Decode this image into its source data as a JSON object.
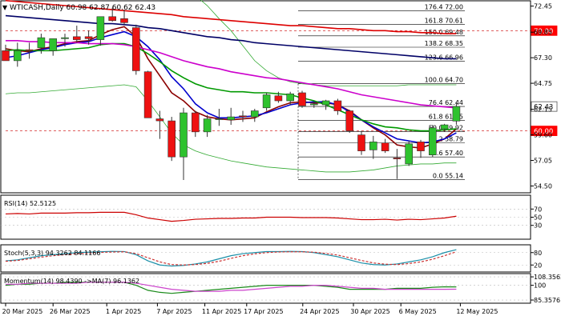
{
  "instrument": {
    "name": "WTICASH",
    "timeframe": "Daily",
    "ohlc": "60.98 62.87 60.62 62.43"
  },
  "chart_data": [
    {
      "type": "candlestick",
      "title": "WTICASH,Daily  60.98 62.87 60.62 62.43",
      "x_labels": [
        "20 Mar 2025",
        "26 Mar 2025",
        "1 Apr 2025",
        "7 Apr 2025",
        "11 Apr 2025",
        "17 Apr 2025",
        "24 Apr 2025",
        "30 Apr 2025",
        "6 May 2025",
        "12 May 2025"
      ],
      "y_ticks": [
        54.5,
        57.05,
        59.6,
        62.15,
        64.75,
        67.3,
        69.85,
        72.45
      ],
      "y_tick_labels": [
        "54.50",
        "57.05",
        "59.60",
        "62.15",
        "64.75",
        "67.30",
        "69.85",
        "72.45"
      ],
      "ylim": [
        53.9,
        72.9
      ],
      "candles": [
        {
          "o": 68.0,
          "h": 68.6,
          "l": 67.0,
          "c": 67.0
        },
        {
          "o": 67.0,
          "h": 68.8,
          "l": 66.4,
          "c": 68.0
        },
        {
          "o": 68.1,
          "h": 68.8,
          "l": 67.2,
          "c": 68.0
        },
        {
          "o": 68.3,
          "h": 69.7,
          "l": 67.7,
          "c": 69.3
        },
        {
          "o": 68.0,
          "h": 69.2,
          "l": 67.5,
          "c": 69.2
        },
        {
          "o": 69.2,
          "h": 69.7,
          "l": 68.4,
          "c": 69.3
        },
        {
          "o": 69.4,
          "h": 70.5,
          "l": 68.8,
          "c": 69.1
        },
        {
          "o": 69.4,
          "h": 70.0,
          "l": 68.6,
          "c": 69.2
        },
        {
          "o": 69.1,
          "h": 71.4,
          "l": 68.5,
          "c": 71.4
        },
        {
          "o": 71.4,
          "h": 72.3,
          "l": 70.9,
          "c": 71.0
        },
        {
          "o": 71.2,
          "h": 72.1,
          "l": 70.6,
          "c": 70.8
        },
        {
          "o": 70.3,
          "h": 70.6,
          "l": 65.6,
          "c": 66.0
        },
        {
          "o": 65.9,
          "h": 66.0,
          "l": 61.3,
          "c": 61.3
        },
        {
          "o": 61.2,
          "h": 62.0,
          "l": 59.2,
          "c": 61.0
        },
        {
          "o": 61.0,
          "h": 61.4,
          "l": 57.0,
          "c": 57.4
        },
        {
          "o": 57.4,
          "h": 62.3,
          "l": 55.1,
          "c": 61.8
        },
        {
          "o": 61.8,
          "h": 62.0,
          "l": 59.4,
          "c": 59.9
        },
        {
          "o": 59.9,
          "h": 61.6,
          "l": 59.4,
          "c": 61.2
        },
        {
          "o": 61.2,
          "h": 62.2,
          "l": 60.5,
          "c": 61.2
        },
        {
          "o": 61.1,
          "h": 62.3,
          "l": 60.6,
          "c": 61.4
        },
        {
          "o": 61.5,
          "h": 62.0,
          "l": 60.9,
          "c": 61.4
        },
        {
          "o": 61.4,
          "h": 62.2,
          "l": 60.9,
          "c": 62.0
        },
        {
          "o": 62.3,
          "h": 63.8,
          "l": 62.0,
          "c": 63.6
        },
        {
          "o": 63.5,
          "h": 63.9,
          "l": 62.8,
          "c": 63.0
        },
        {
          "o": 63.0,
          "h": 63.9,
          "l": 62.6,
          "c": 63.7
        },
        {
          "o": 63.8,
          "h": 64.0,
          "l": 62.3,
          "c": 62.5
        },
        {
          "o": 62.6,
          "h": 62.9,
          "l": 62.3,
          "c": 62.7
        },
        {
          "o": 62.6,
          "h": 63.1,
          "l": 62.1,
          "c": 63.0
        },
        {
          "o": 63.0,
          "h": 63.2,
          "l": 61.6,
          "c": 62.0
        },
        {
          "o": 62.0,
          "h": 62.1,
          "l": 59.8,
          "c": 60.0
        },
        {
          "o": 59.6,
          "h": 60.0,
          "l": 57.6,
          "c": 58.0
        },
        {
          "o": 58.1,
          "h": 59.5,
          "l": 57.2,
          "c": 58.9
        },
        {
          "o": 58.8,
          "h": 59.2,
          "l": 57.8,
          "c": 58.0
        },
        {
          "o": 57.3,
          "h": 58.2,
          "l": 55.2,
          "c": 57.2
        },
        {
          "o": 56.7,
          "h": 59.0,
          "l": 56.5,
          "c": 58.7
        },
        {
          "o": 58.9,
          "h": 59.1,
          "l": 57.3,
          "c": 58.0
        },
        {
          "o": 57.6,
          "h": 60.6,
          "l": 57.4,
          "c": 60.3
        },
        {
          "o": 60.2,
          "h": 60.7,
          "l": 59.9,
          "c": 60.6
        },
        {
          "o": 60.98,
          "h": 62.87,
          "l": 60.62,
          "c": 62.43
        }
      ],
      "fibonacci": [
        {
          "level": "176.4",
          "value": 72.0,
          "label": "176.4 72.00"
        },
        {
          "level": "161.8",
          "value": 70.61,
          "label": "161.8 70.61"
        },
        {
          "level": "150.0",
          "value": 69.48,
          "label": "150.0 69.48"
        },
        {
          "level": "138.2",
          "value": 68.35,
          "label": "138.2 68.35"
        },
        {
          "level": "123.6",
          "value": 66.96,
          "label": "123.6 66.96"
        },
        {
          "level": "100.0",
          "value": 64.7,
          "label": "100.0 64.70"
        },
        {
          "level": "76.4",
          "value": 62.44,
          "label": "76.4 62.44"
        },
        {
          "level": "61.8",
          "value": 61.05,
          "label": "61.8 61.05"
        },
        {
          "level": "50.0",
          "value": 59.92,
          "label": "50.0 59.92"
        },
        {
          "level": "38.2",
          "value": 58.79,
          "label": "38.2 58.79"
        },
        {
          "level": "23.6",
          "value": 57.4,
          "label": "23.6 57.40"
        },
        {
          "level": "0.0",
          "value": 55.14,
          "label": "0.0 55.14"
        }
      ],
      "price_markers": [
        {
          "value": 62.43,
          "label": "62.43",
          "color": "#ffffff",
          "border": "#555555",
          "text_color": "#000000"
        },
        {
          "value": 70.0,
          "label": "70.00",
          "color": "#ff0000",
          "border": "#ff0000",
          "text_color": "#ffffff"
        },
        {
          "value": 60.0,
          "label": "60.00",
          "color": "#ff0000",
          "border": "#ff0000",
          "text_color": "#ffffff"
        }
      ],
      "moving_averages": [
        {
          "color": "#8b0000",
          "values": [
            68.2,
            68.0,
            67.9,
            68.2,
            68.4,
            68.7,
            68.9,
            69.0,
            69.6,
            70.1,
            70.4,
            69.4,
            67.2,
            65.5,
            63.8,
            63.0,
            61.9,
            61.4,
            61.2,
            61.1,
            61.2,
            61.3,
            61.9,
            62.4,
            62.8,
            62.9,
            62.8,
            62.8,
            62.6,
            62.0,
            61.1,
            60.3,
            59.6,
            58.6,
            58.4,
            58.3,
            58.7,
            59.2,
            60.2
          ]
        },
        {
          "color": "#0000cc",
          "values": [
            67.3,
            67.5,
            67.8,
            68.1,
            68.3,
            68.6,
            68.8,
            68.9,
            69.3,
            69.6,
            69.9,
            69.4,
            68.4,
            67.1,
            65.4,
            64.2,
            62.7,
            61.8,
            61.3,
            61.3,
            61.4,
            61.5,
            61.8,
            62.2,
            62.6,
            62.8,
            62.9,
            62.9,
            62.6,
            61.9,
            61.1,
            60.4,
            59.8,
            59.2,
            59.0,
            58.8,
            58.9,
            59.2,
            59.8
          ]
        },
        {
          "color": "#009900",
          "values": [
            68.0,
            68.1,
            68.0,
            68.0,
            68.0,
            68.1,
            68.2,
            68.3,
            68.6,
            68.7,
            68.7,
            68.4,
            67.7,
            66.9,
            66.0,
            65.3,
            64.7,
            64.3,
            64.1,
            63.9,
            63.9,
            63.8,
            63.8,
            63.7,
            63.6,
            63.3,
            63.0,
            62.6,
            62.1,
            61.6,
            61.1,
            60.7,
            60.4,
            60.3,
            60.1,
            60.0,
            60.0,
            60.1,
            60.2
          ]
        },
        {
          "color": "#cc00cc",
          "values": [
            69.0,
            69.0,
            68.9,
            68.9,
            68.8,
            68.8,
            68.8,
            68.7,
            68.7,
            68.7,
            68.6,
            68.4,
            68.1,
            67.8,
            67.4,
            67.0,
            66.7,
            66.4,
            66.2,
            65.9,
            65.7,
            65.5,
            65.3,
            65.2,
            65.0,
            64.8,
            64.6,
            64.4,
            64.2,
            63.9,
            63.6,
            63.4,
            63.2,
            63.0,
            62.8,
            62.6,
            62.5,
            62.4,
            62.3
          ]
        },
        {
          "color": "#000066",
          "values": [
            71.5,
            71.4,
            71.3,
            71.2,
            71.1,
            71.0,
            70.9,
            70.8,
            70.7,
            70.7,
            70.6,
            70.5,
            70.3,
            70.2,
            70.0,
            69.8,
            69.6,
            69.4,
            69.3,
            69.1,
            69.0,
            68.8,
            68.7,
            68.6,
            68.5,
            68.4,
            68.3,
            68.2,
            68.1,
            68.0,
            67.9,
            67.8,
            67.7,
            67.6,
            67.5,
            67.4,
            67.3,
            67.2,
            67.2
          ]
        },
        {
          "color": "#dd0000",
          "values": [
            73.0,
            72.9,
            72.8,
            72.7,
            72.6,
            72.5,
            72.4,
            72.3,
            72.2,
            72.1,
            72.0,
            71.9,
            71.8,
            71.7,
            71.6,
            71.4,
            71.3,
            71.2,
            71.1,
            71.0,
            70.9,
            70.8,
            70.7,
            70.6,
            70.5,
            70.5,
            70.4,
            70.3,
            70.2,
            70.2,
            70.1,
            70.0,
            70.0,
            69.9,
            69.9,
            69.8,
            69.8,
            69.7,
            69.7
          ]
        }
      ],
      "bollinger": {
        "color": "#33aa33",
        "upper": [
          73.5,
          73.4,
          73.3,
          73.2,
          73.2,
          73.2,
          73.3,
          73.4,
          73.6,
          73.8,
          74.0,
          74.2,
          74.4,
          74.5,
          74.5,
          74.3,
          73.5,
          72.5,
          71.2,
          70.0,
          68.5,
          67.0,
          66.0,
          65.3,
          64.9,
          64.7,
          64.6,
          64.5,
          64.5,
          64.5,
          64.5,
          64.5,
          64.5,
          64.5,
          64.6,
          64.6,
          64.6,
          64.6,
          64.6
        ],
        "lower": [
          63.7,
          63.8,
          63.8,
          63.9,
          64.0,
          64.1,
          64.2,
          64.3,
          64.4,
          64.5,
          64.6,
          64.4,
          63.0,
          61.4,
          59.8,
          58.6,
          58.0,
          57.6,
          57.3,
          57.0,
          56.8,
          56.6,
          56.4,
          56.3,
          56.2,
          56.1,
          56.0,
          55.9,
          55.9,
          55.9,
          56.0,
          56.1,
          56.3,
          56.5,
          56.6,
          56.7,
          56.7,
          56.8,
          56.8
        ]
      }
    },
    {
      "type": "line",
      "label": "RSI(14) 52.5125",
      "y_ticks": [
        70,
        50,
        30
      ],
      "ylim": [
        0,
        100
      ],
      "series": [
        {
          "color": "#cc0000",
          "values": [
            58,
            59,
            58,
            60,
            60,
            60,
            61,
            61,
            62,
            62,
            62,
            56,
            48,
            44,
            40,
            42,
            45,
            46,
            47,
            47,
            48,
            48,
            50,
            50,
            50,
            49,
            49,
            49,
            48,
            46,
            44,
            44,
            45,
            43,
            45,
            44,
            46,
            48,
            52.5
          ]
        }
      ]
    },
    {
      "type": "line",
      "label": "Stoch(5,3,3) 94.3262 84.1166",
      "y_ticks": [
        80,
        20
      ],
      "y_tick_labels": [
        "80",
        "20"
      ],
      "ylim": [
        -10,
        110
      ],
      "series": [
        {
          "color": "#1a8fa8",
          "values": [
            40,
            45,
            55,
            65,
            70,
            75,
            80,
            82,
            84,
            86,
            85,
            70,
            40,
            20,
            15,
            18,
            25,
            35,
            50,
            65,
            75,
            80,
            85,
            85,
            86,
            85,
            80,
            70,
            60,
            45,
            30,
            22,
            20,
            25,
            35,
            45,
            60,
            80,
            94.3
          ]
        },
        {
          "color": "#cc3333",
          "values": [
            38,
            42,
            50,
            58,
            65,
            70,
            75,
            78,
            81,
            83,
            84,
            75,
            55,
            35,
            22,
            20,
            22,
            28,
            38,
            52,
            65,
            74,
            80,
            83,
            84,
            84,
            82,
            76,
            68,
            55,
            42,
            30,
            24,
            22,
            27,
            35,
            48,
            65,
            84.1
          ]
        }
      ]
    },
    {
      "type": "line",
      "label": "Momentum(14) 98.4390  ->MA(7) 96.1362",
      "y_ticks": [
        108.3562,
        100,
        85.3576
      ],
      "y_tick_labels": [
        "108.3562",
        "100",
        "85.3576"
      ],
      "ylim": [
        83,
        110
      ],
      "series": [
        {
          "color": "#1a8a1a",
          "values": [
            100,
            101,
            101,
            102,
            102,
            103,
            103,
            103,
            103,
            103,
            103,
            100,
            95,
            93,
            92,
            93,
            94,
            95,
            96,
            97,
            98,
            99,
            100,
            100,
            100,
            100,
            100,
            99,
            98,
            96,
            96,
            96,
            96,
            97,
            97,
            97,
            98,
            98.5,
            98.4
          ]
        },
        {
          "color": "#cc44cc",
          "values": [
            101,
            101,
            102,
            102,
            102,
            102,
            102,
            103,
            103,
            103,
            103,
            102,
            100,
            98,
            96,
            95,
            94,
            94,
            94,
            95,
            95,
            96,
            97,
            98,
            99,
            99,
            100,
            100,
            99,
            98,
            97,
            97,
            96,
            96,
            96,
            96,
            96,
            96,
            96.1
          ]
        }
      ]
    }
  ]
}
